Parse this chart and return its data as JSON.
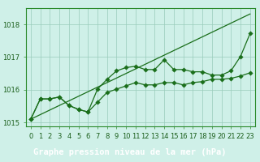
{
  "xlabel": "Graphe pression niveau de la mer (hPa)",
  "x": [
    0,
    1,
    2,
    3,
    4,
    5,
    6,
    7,
    8,
    9,
    10,
    11,
    12,
    13,
    14,
    15,
    16,
    17,
    18,
    19,
    20,
    21,
    22,
    23
  ],
  "series_straight": [
    1015.1,
    1015.24,
    1015.38,
    1015.52,
    1015.66,
    1015.8,
    1015.94,
    1016.08,
    1016.22,
    1016.36,
    1016.5,
    1016.64,
    1016.78,
    1016.92,
    1017.06,
    1017.2,
    1017.34,
    1017.48,
    1017.62,
    1017.76,
    1017.9,
    1018.04,
    1018.18,
    1018.32
  ],
  "series_mid": [
    1015.1,
    1015.72,
    1015.72,
    1015.78,
    1015.52,
    1015.4,
    1015.32,
    1015.62,
    1015.92,
    1016.02,
    1016.12,
    1016.22,
    1016.15,
    1016.15,
    1016.22,
    1016.22,
    1016.15,
    1016.22,
    1016.25,
    1016.32,
    1016.32,
    1016.35,
    1016.42,
    1016.52
  ],
  "series_wiggly": [
    1015.1,
    1015.72,
    1015.72,
    1015.78,
    1015.52,
    1015.4,
    1015.32,
    1016.02,
    1016.32,
    1016.58,
    1016.68,
    1016.72,
    1016.62,
    1016.62,
    1016.92,
    1016.62,
    1016.62,
    1016.55,
    1016.55,
    1016.45,
    1016.45,
    1016.58,
    1017.02,
    1017.72
  ],
  "line_color": "#1a6e1a",
  "marker_color": "#1a6e1a",
  "bg_color": "#cff0e8",
  "grid_color": "#99ccbb",
  "ylim": [
    1014.88,
    1018.5
  ],
  "yticks": [
    1015,
    1016,
    1017,
    1018
  ],
  "xtick_labels": [
    "0",
    "1",
    "2",
    "3",
    "4",
    "5",
    "6",
    "7",
    "8",
    "9",
    "10",
    "11",
    "12",
    "13",
    "14",
    "15",
    "16",
    "17",
    "18",
    "19",
    "20",
    "21",
    "22",
    "23"
  ],
  "xlabel_fontsize": 7.5,
  "tick_fontsize": 6.0,
  "marker_size": 2.8,
  "line_width": 0.9,
  "label_color": "#1a5e1a",
  "label_bg": "#44bb44",
  "border_color": "#2a8a2a"
}
